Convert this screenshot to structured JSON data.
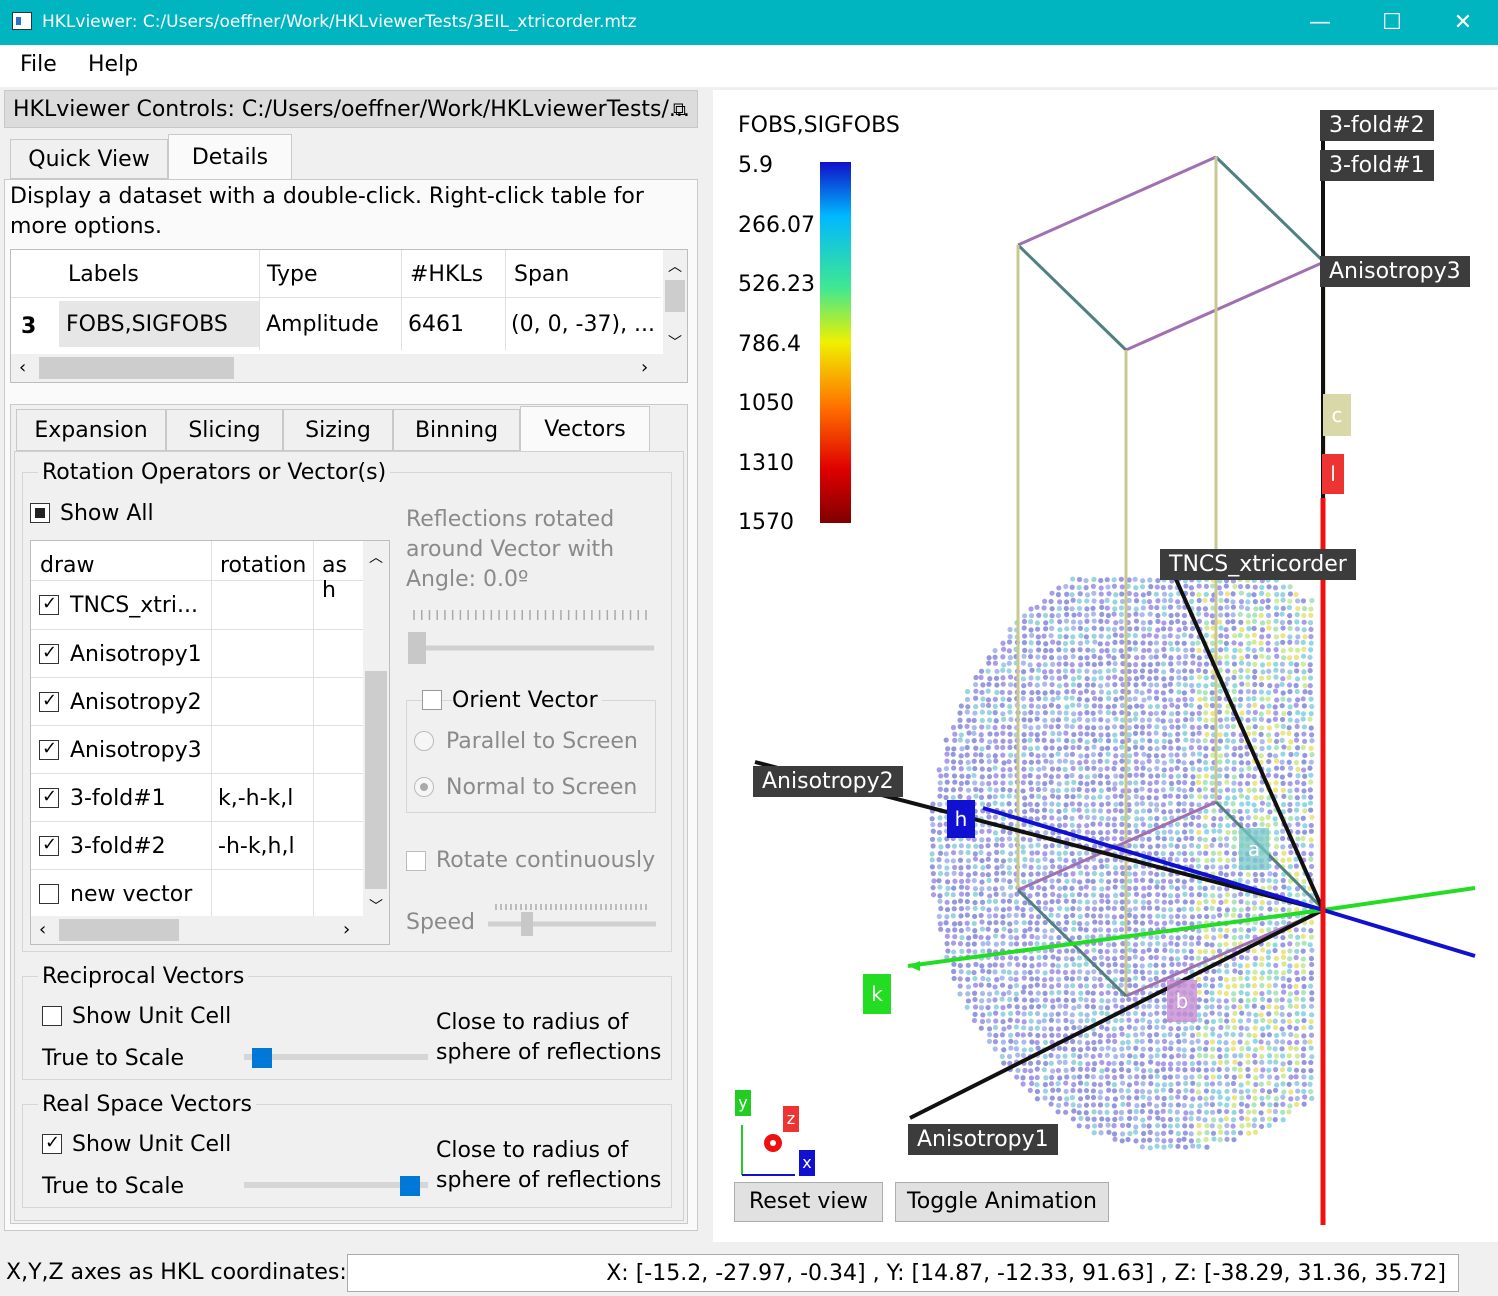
{
  "window": {
    "title": "HKLviewer: C:/Users/oeffner/Work/HKLviewerTests/3EIL_xtricorder.mtz",
    "min_icon": "minimize-icon",
    "max_icon": "maximize-icon",
    "close_icon": "close-icon"
  },
  "menu": {
    "file": "File",
    "help": "Help"
  },
  "dock": {
    "title": "HKLviewer Controls: C:/Users/oeffner/Work/HKLviewerTests/...",
    "float_icon": "undock-icon"
  },
  "top_tabs": [
    "Quick View",
    "Details"
  ],
  "details": {
    "hint": "Display a dataset with a double-click. Right-click table for more options.",
    "table": {
      "headers": [
        "Labels",
        "Type",
        "#HKLs",
        "Span"
      ],
      "row_index": "3",
      "row": [
        "FOBS,SIGFOBS",
        "Amplitude",
        "6461",
        "(0, 0, -37), ..."
      ]
    }
  },
  "sub_tabs": [
    "Expansion",
    "Slicing",
    "Sizing",
    "Binning",
    "Vectors"
  ],
  "vectors": {
    "group_title": "Rotation Operators or Vector(s)",
    "show_all": "Show All",
    "headers": [
      "draw",
      "rotation",
      "as h"
    ],
    "rows": [
      {
        "name": "TNCS_xtri...",
        "rotation": "",
        "checked": true
      },
      {
        "name": "Anisotropy1",
        "rotation": "",
        "checked": true
      },
      {
        "name": "Anisotropy2",
        "rotation": "",
        "checked": true
      },
      {
        "name": "Anisotropy3",
        "rotation": "",
        "checked": true
      },
      {
        "name": "3-fold#1",
        "rotation": "k,-h-k,l",
        "checked": true
      },
      {
        "name": "3-fold#2",
        "rotation": "-h-k,h,l",
        "checked": true
      },
      {
        "name": "new vector",
        "rotation": "",
        "checked": false
      }
    ],
    "rotated_text": "Reflections rotated around Vector with Angle: 0.0º",
    "orient_vector": "Orient Vector",
    "parallel": "Parallel to Screen",
    "normal": "Normal to Screen",
    "rotate_continuously": "Rotate continuously",
    "speed": "Speed"
  },
  "reciprocal": {
    "title": "Reciprocal Vectors",
    "show_unit_cell": "Show Unit Cell",
    "true_to_scale": "True to Scale",
    "close_to_radius": "Close to radius of sphere of reflections",
    "slider": 0.05
  },
  "real_space": {
    "title": "Real Space Vectors",
    "show_unit_cell": "Show Unit Cell",
    "true_to_scale": "True to Scale",
    "close_to_radius": "Close to radius of sphere of reflections",
    "slider": 0.95
  },
  "viewer": {
    "colorbar_title": "FOBS,SIGFOBS",
    "colorbar_ticks": [
      "5.9",
      "266.07",
      "526.23",
      "786.4",
      "1050",
      "1310",
      "1570"
    ],
    "labels": {
      "threefold2": "3-fold#2",
      "threefold1": "3-fold#1",
      "aniso3": "Anisotropy3",
      "tncs": "TNCS_xtricorder",
      "aniso2": "Anisotropy2",
      "aniso1": "Anisotropy1"
    },
    "axes": {
      "h": "h",
      "k": "k",
      "l": "l",
      "a": "a",
      "b": "b",
      "c": "c"
    },
    "mini_axes": {
      "x": "x",
      "y": "y",
      "z": "z"
    },
    "reset": "Reset view",
    "toggle": "Toggle Animation"
  },
  "status": {
    "label": "X,Y,Z axes as HKL coordinates:",
    "value": "X: [-15.2, -27.97, -0.34] , Y: [14.87, -12.33, 91.63] , Z: [-38.29, 31.36, 35.72]"
  },
  "colors": {
    "titlebar": "#00b5c0",
    "h_axis": "#1010d0",
    "k_axis": "#22dd22",
    "l_axis": "#ee1111"
  }
}
